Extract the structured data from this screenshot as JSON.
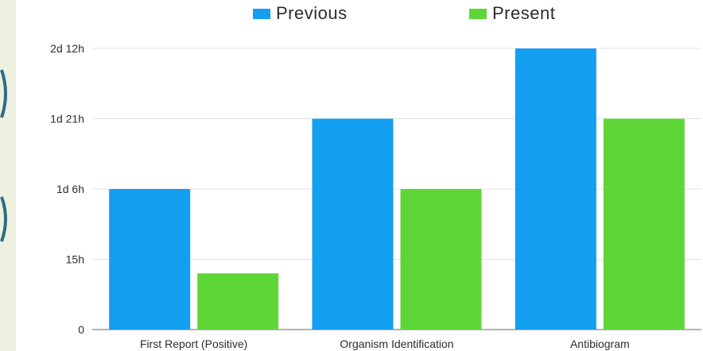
{
  "colors": {
    "previous": "#139ff0",
    "present": "#5ed638",
    "grid": "#e3e3e3",
    "text": "#2c2c2c",
    "background": "#eef0e0",
    "edge_mark": "#2b6e86"
  },
  "chart_data": {
    "type": "bar",
    "title": "",
    "xlabel": "",
    "ylabel": "",
    "categories": [
      "First Report (Positive)",
      "Organism Identification",
      "Antibiogram"
    ],
    "series": [
      {
        "name": "Previous",
        "color": "#139ff0",
        "values": [
          30,
          45,
          60
        ]
      },
      {
        "name": "Present",
        "color": "#5ed638",
        "values": [
          12,
          30,
          45
        ]
      }
    ],
    "y_unit": "hours",
    "ylim": [
      0,
      60
    ],
    "yticks": [
      0,
      15,
      30,
      45,
      60
    ],
    "ytick_labels": [
      "0",
      "15h",
      "1d 6h",
      "1d 21h",
      "2d 12h"
    ],
    "grid": true,
    "legend_position": "top-center"
  }
}
